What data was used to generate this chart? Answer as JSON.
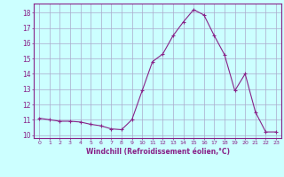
{
  "x": [
    0,
    1,
    2,
    3,
    4,
    5,
    6,
    7,
    8,
    9,
    10,
    11,
    12,
    13,
    14,
    15,
    16,
    17,
    18,
    19,
    20,
    21,
    22,
    23
  ],
  "y": [
    11.1,
    11.0,
    10.9,
    10.9,
    10.85,
    10.7,
    10.6,
    10.4,
    10.35,
    11.0,
    12.9,
    14.8,
    15.3,
    16.5,
    17.4,
    18.2,
    17.85,
    16.5,
    15.25,
    12.9,
    14.0,
    11.5,
    10.2,
    10.2
  ],
  "line_color": "#882288",
  "marker": "+",
  "marker_size": 3,
  "marker_lw": 0.8,
  "bg_color": "#ccffff",
  "grid_color": "#aaaacc",
  "xlabel": "Windchill (Refroidissement éolien,°C)",
  "xlabel_color": "#882288",
  "ylabel_ticks": [
    10,
    11,
    12,
    13,
    14,
    15,
    16,
    17,
    18
  ],
  "xtick_labels": [
    "0",
    "1",
    "2",
    "3",
    "4",
    "5",
    "6",
    "7",
    "8",
    "9",
    "10",
    "11",
    "12",
    "13",
    "14",
    "15",
    "16",
    "17",
    "18",
    "19",
    "20",
    "21",
    "22",
    "23"
  ],
  "ylim": [
    9.8,
    18.6
  ],
  "xlim": [
    -0.5,
    23.5
  ],
  "line_width": 0.8
}
